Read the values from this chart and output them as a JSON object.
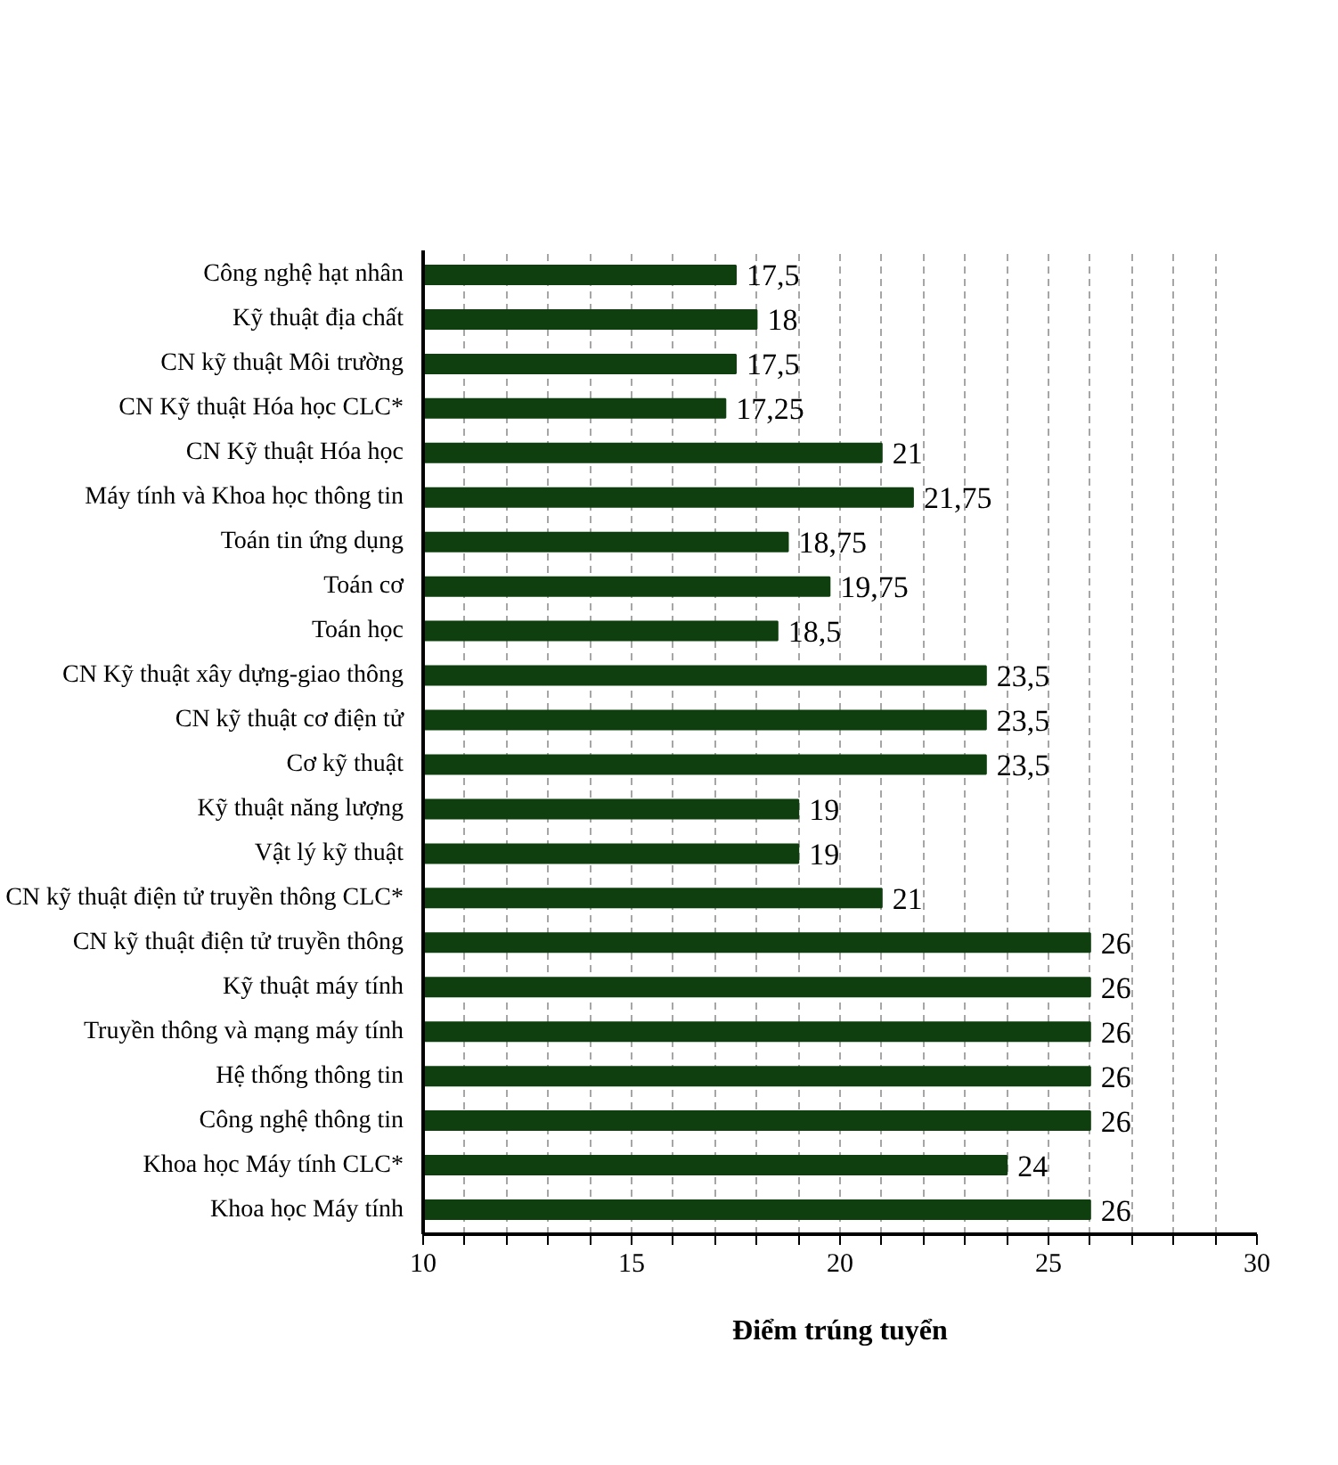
{
  "chart_data": {
    "type": "bar",
    "orientation": "horizontal",
    "xlabel": "Điểm trúng tuyển",
    "categories": [
      "Công nghệ hạt nhân",
      "Kỹ thuật địa chất",
      "CN kỹ thuật Môi trường",
      "CN Kỹ thuật Hóa học CLC*",
      "CN Kỹ thuật Hóa học",
      "Máy tính và Khoa học thông tin",
      "Toán tin ứng dụng",
      "Toán cơ",
      "Toán học",
      "CN Kỹ thuật xây dựng-giao thông",
      "CN kỹ thuật cơ điện tử",
      "Cơ kỹ thuật",
      "Kỹ thuật năng lượng",
      "Vật lý kỹ thuật",
      "CN kỹ thuật điện tử truyền thông CLC*",
      "CN kỹ thuật điện tử truyền thông",
      "Kỹ thuật máy tính",
      "Truyền thông và mạng máy tính",
      "Hệ thống thông tin",
      "Công nghệ thông tin",
      "Khoa học Máy tính CLC*",
      "Khoa học Máy tính"
    ],
    "values": [
      17.5,
      18,
      17.5,
      17.25,
      21,
      21.75,
      18.75,
      19.75,
      18.5,
      23.5,
      23.5,
      23.5,
      19,
      19,
      21,
      26,
      26,
      26,
      26,
      26,
      24,
      26
    ],
    "value_labels": [
      "17,5",
      "18",
      "17,5",
      "17,25",
      "21",
      "21,75",
      "18,75",
      "19,75",
      "18,5",
      "23,5",
      "23,5",
      "23,5",
      "19",
      "19",
      "21",
      "26",
      "26",
      "26",
      "26",
      "26",
      "24",
      "26"
    ],
    "color": "#0f3f0f",
    "xlim": [
      10,
      30
    ],
    "xticks": [
      10,
      {
        "value": 11,
        "label": null
      },
      {
        "value": 12,
        "label": null
      },
      {
        "value": 13,
        "label": null
      },
      {
        "value": 14,
        "label": null
      },
      15,
      {
        "value": 16,
        "label": null
      },
      {
        "value": 17,
        "label": null
      },
      {
        "value": 18,
        "label": null
      },
      {
        "value": 19,
        "label": null
      },
      20,
      {
        "value": 21,
        "label": null
      },
      {
        "value": 22,
        "label": null
      },
      {
        "value": 23,
        "label": null
      },
      {
        "value": 24,
        "label": null
      },
      25,
      {
        "value": 26,
        "label": null
      },
      {
        "value": 27,
        "label": null
      },
      {
        "value": 28,
        "label": null
      },
      {
        "value": 29,
        "label": null
      },
      30
    ],
    "grid": "x"
  }
}
